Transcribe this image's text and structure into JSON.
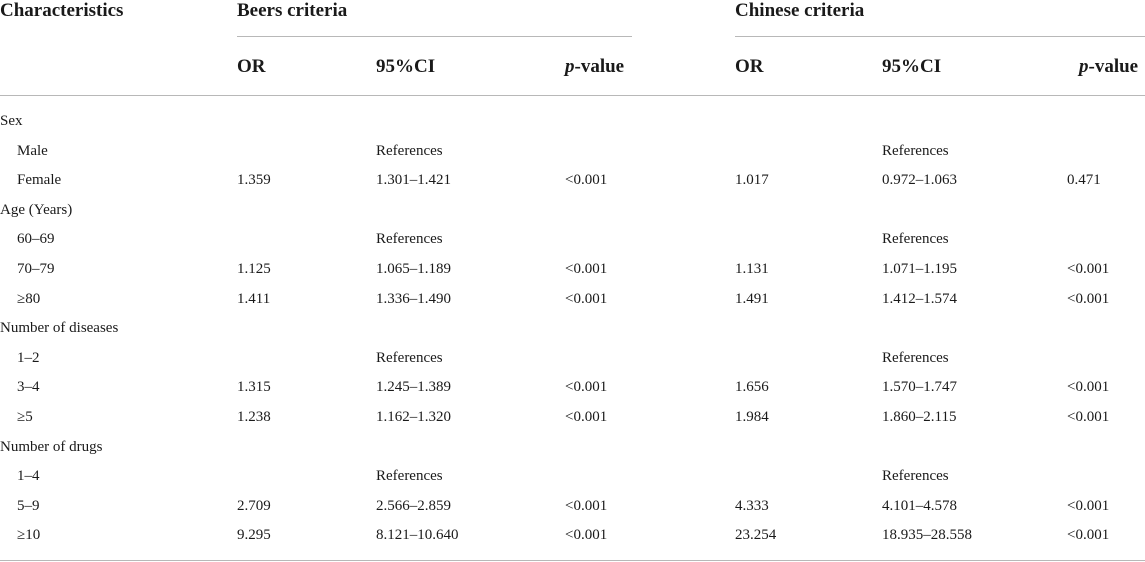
{
  "headers": {
    "characteristics": "Characteristics",
    "beers": "Beers criteria",
    "chinese": "Chinese criteria",
    "or": "OR",
    "ci": "95%CI",
    "p_italic": "p",
    "p_rest": "-value"
  },
  "rows": [
    {
      "label": "Sex",
      "indent": false,
      "b_or": "",
      "b_ci": "",
      "b_p": "",
      "c_or": "",
      "c_ci": "",
      "c_p": ""
    },
    {
      "label": "Male",
      "indent": true,
      "b_or": "",
      "b_ci": "References",
      "b_p": "",
      "c_or": "",
      "c_ci": "References",
      "c_p": ""
    },
    {
      "label": "Female",
      "indent": true,
      "b_or": "1.359",
      "b_ci": "1.301–1.421",
      "b_p": "<0.001",
      "c_or": "1.017",
      "c_ci": "0.972–1.063",
      "c_p": "0.471"
    },
    {
      "label": "Age (Years)",
      "indent": false,
      "b_or": "",
      "b_ci": "",
      "b_p": "",
      "c_or": "",
      "c_ci": "",
      "c_p": ""
    },
    {
      "label": "60–69",
      "indent": true,
      "b_or": "",
      "b_ci": "References",
      "b_p": "",
      "c_or": "",
      "c_ci": "References",
      "c_p": ""
    },
    {
      "label": "70–79",
      "indent": true,
      "b_or": "1.125",
      "b_ci": "1.065–1.189",
      "b_p": "<0.001",
      "c_or": "1.131",
      "c_ci": "1.071–1.195",
      "c_p": "<0.001"
    },
    {
      "label": "≥80",
      "indent": true,
      "b_or": "1.411",
      "b_ci": "1.336–1.490",
      "b_p": "<0.001",
      "c_or": "1.491",
      "c_ci": "1.412–1.574",
      "c_p": "<0.001"
    },
    {
      "label": "Number of diseases",
      "indent": false,
      "b_or": "",
      "b_ci": "",
      "b_p": "",
      "c_or": "",
      "c_ci": "",
      "c_p": ""
    },
    {
      "label": "1–2",
      "indent": true,
      "b_or": "",
      "b_ci": "References",
      "b_p": "",
      "c_or": "",
      "c_ci": "References",
      "c_p": ""
    },
    {
      "label": "3–4",
      "indent": true,
      "b_or": "1.315",
      "b_ci": "1.245–1.389",
      "b_p": "<0.001",
      "c_or": "1.656",
      "c_ci": "1.570–1.747",
      "c_p": "<0.001"
    },
    {
      "label": "≥5",
      "indent": true,
      "b_or": "1.238",
      "b_ci": "1.162–1.320",
      "b_p": "<0.001",
      "c_or": "1.984",
      "c_ci": "1.860–2.115",
      "c_p": "<0.001"
    },
    {
      "label": "Number of drugs",
      "indent": false,
      "b_or": "",
      "b_ci": "",
      "b_p": "",
      "c_or": "",
      "c_ci": "",
      "c_p": ""
    },
    {
      "label": "1–4",
      "indent": true,
      "b_or": "",
      "b_ci": "References",
      "b_p": "",
      "c_or": "",
      "c_ci": "References",
      "c_p": ""
    },
    {
      "label": "5–9",
      "indent": true,
      "b_or": "2.709",
      "b_ci": "2.566–2.859",
      "b_p": "<0.001",
      "c_or": "4.333",
      "c_ci": "4.101–4.578",
      "c_p": "<0.001"
    },
    {
      "label": "≥10",
      "indent": true,
      "b_or": "9.295",
      "b_ci": "8.121–10.640",
      "b_p": "<0.001",
      "c_or": "23.254",
      "c_ci": "18.935–28.558",
      "c_p": "<0.001"
    }
  ]
}
